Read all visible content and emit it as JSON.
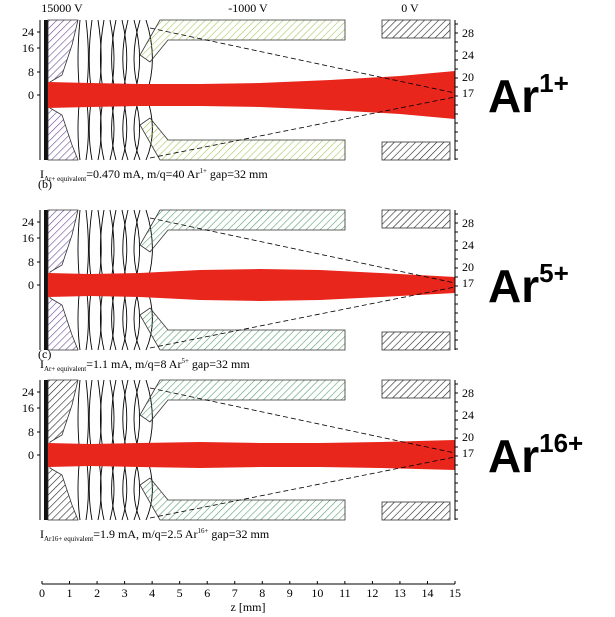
{
  "top_labels": [
    "15000 V",
    "-1000 V",
    "0 V"
  ],
  "panels": [
    {
      "left_ticks": [
        "24",
        "16",
        "8",
        "0"
      ],
      "right_ticks": [
        "28",
        "24",
        "20",
        "17"
      ],
      "caption": {
        "i": "I",
        "sub": "Ar+ equivalent",
        "main": "=0.470 mA, m/q=40 Ar",
        "sup": "1+",
        "tail": " gap=32 mm"
      },
      "ion": {
        "base": "Ar",
        "charge": "1+"
      }
    },
    {
      "letter": "(b)",
      "left_ticks": [
        "24",
        "16",
        "8",
        "0"
      ],
      "right_ticks": [
        "28",
        "24",
        "20",
        "17"
      ],
      "caption": {
        "i": "I",
        "sub": "Ar+ equivalent",
        "main": "=1.1 mA, m/q=8 Ar",
        "sup": "5+",
        "tail": " gap=32 mm"
      },
      "ion": {
        "base": "Ar",
        "charge": "5+"
      }
    },
    {
      "letter": "(c)",
      "left_ticks": [
        "24",
        "16",
        "8",
        "0"
      ],
      "right_ticks": [
        "28",
        "24",
        "20",
        "17"
      ],
      "caption": {
        "i": "I",
        "sub": "Ar16+ equivalent",
        "main": "=1.9 mA, m/q=2.5 Ar",
        "sup": "16+",
        "tail": " gap=32 mm"
      },
      "ion": {
        "base": "Ar",
        "charge": "16+"
      }
    }
  ],
  "z_axis": {
    "ticks": [
      "0",
      "1",
      "2",
      "3",
      "4",
      "5",
      "6",
      "7",
      "8",
      "9",
      "10",
      "11",
      "12",
      "13",
      "14",
      "15"
    ],
    "label": "z [mm]"
  }
}
